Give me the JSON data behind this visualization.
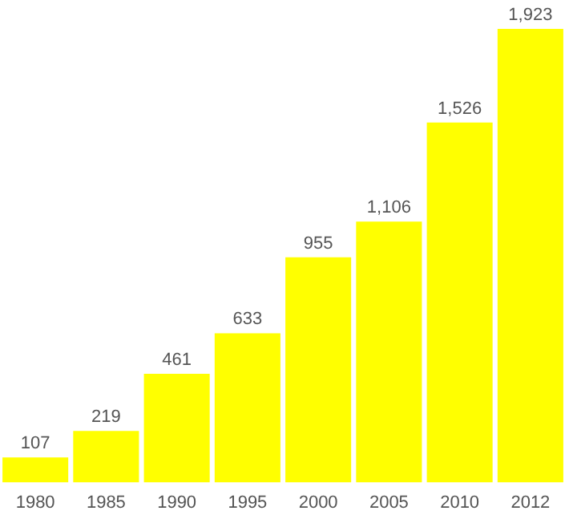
{
  "chart_data": {
    "type": "bar",
    "categories": [
      "1980",
      "1985",
      "1990",
      "1995",
      "2000",
      "2005",
      "2010",
      "2012"
    ],
    "values": [
      107,
      219,
      461,
      633,
      955,
      1106,
      1526,
      1923
    ],
    "color": "#ffff00",
    "value_labels": [
      "107",
      "219",
      "461",
      "633",
      "955",
      "1,106",
      "1,526",
      "1,923"
    ],
    "grid": false,
    "legend": false
  }
}
